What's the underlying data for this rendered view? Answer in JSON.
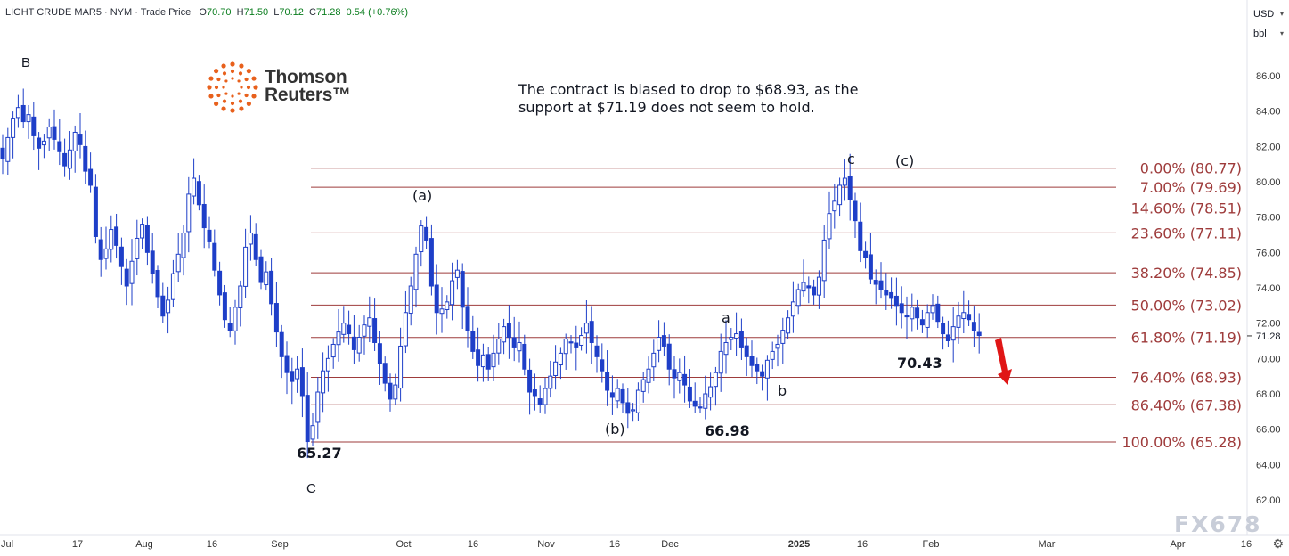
{
  "header": {
    "symbol": "LIGHT CRUDE MAR5 · NYM · Trade Price",
    "o_label": "O",
    "o_value": "70.70",
    "h_label": "H",
    "h_value": "71.50",
    "l_label": "L",
    "l_value": "70.12",
    "c_label": "C",
    "c_value": "71.28",
    "change": "0.54 (+0.76%)"
  },
  "currency_select": "USD",
  "unit_select": "bbl",
  "logo": {
    "name_line1": "Thomson",
    "name_line2": "Reuters™"
  },
  "note": "The contract is biased to drop to $68.93, as the support at $71.19 does not seem to hold.",
  "watermark": "FX678",
  "wave_labels": {
    "B": "B",
    "C": "C",
    "a_paren": "(a)",
    "b_paren": "(b)",
    "c_paren": "(c)",
    "a": "a",
    "b": "b",
    "c": "c"
  },
  "price_labels": {
    "low_sep": "65.27",
    "low_dec": "66.98",
    "low_feb": "70.43"
  },
  "colors": {
    "candle": "#1e3fc8",
    "fib_line": "#9e3b3b",
    "fib_text": "#9e3b3b",
    "arrow": "#e01616",
    "axis_text": "#333333"
  },
  "chart_data": {
    "type": "candlestick",
    "y_axis": {
      "min": 61,
      "max": 88,
      "ticks": [
        "86.00",
        "84.00",
        "82.00",
        "80.00",
        "78.00",
        "76.00",
        "74.00",
        "72.00",
        "70.00",
        "68.00",
        "66.00",
        "64.00",
        "62.00"
      ],
      "current_label": "71.28"
    },
    "x_axis": {
      "ticks": [
        "Jul",
        "17",
        "Aug",
        "16",
        "Sep",
        "Oct",
        "16",
        "Nov",
        "16",
        "Dec",
        "2025",
        "16",
        "Feb",
        "Mar",
        "Apr",
        "16"
      ]
    },
    "fib_levels": [
      {
        "label": "0.00% (80.77)",
        "value": 80.77
      },
      {
        "label": "7.00% (79.69)",
        "value": 79.69
      },
      {
        "label": "14.60% (78.51)",
        "value": 78.51
      },
      {
        "label": "23.60% (77.11)",
        "value": 77.11
      },
      {
        "label": "38.20% (74.85)",
        "value": 74.85
      },
      {
        "label": "50.00% (73.02)",
        "value": 73.02
      },
      {
        "label": "61.80% (71.19)",
        "value": 71.19
      },
      {
        "label": "76.40% (68.93)",
        "value": 68.93
      },
      {
        "label": "86.40% (67.38)",
        "value": 67.38
      },
      {
        "label": "100.00% (65.28)",
        "value": 65.28
      }
    ],
    "closes": [
      81.3,
      82.5,
      83.6,
      84.2,
      83.4,
      83.8,
      82.6,
      81.9,
      82.3,
      83.1,
      82.4,
      81.7,
      80.9,
      81.8,
      82.8,
      82.1,
      80.6,
      79.8,
      76.9,
      75.6,
      76.2,
      77.3,
      76.4,
      75.2,
      74.1,
      75.5,
      76.8,
      77.6,
      76.0,
      74.8,
      73.5,
      72.4,
      73.3,
      74.8,
      75.9,
      77.1,
      79.3,
      80.2,
      78.7,
      77.4,
      76.6,
      75.0,
      73.6,
      72.2,
      71.6,
      72.9,
      74.1,
      76.3,
      77.1,
      75.6,
      74.3,
      74.9,
      73.1,
      71.5,
      70.1,
      69.2,
      68.7,
      69.4,
      67.9,
      65.3,
      66.2,
      68.1,
      69.3,
      70.0,
      70.8,
      71.5,
      72.0,
      71.4,
      70.5,
      71.2,
      71.9,
      72.3,
      70.9,
      69.7,
      68.6,
      67.7,
      68.5,
      70.7,
      72.6,
      74.1,
      75.9,
      77.5,
      76.7,
      74.1,
      72.6,
      72.8,
      73.2,
      74.4,
      75.0,
      72.9,
      71.6,
      70.4,
      69.6,
      70.2,
      69.4,
      70.3,
      71.1,
      71.8,
      71.2,
      70.6,
      70.9,
      69.4,
      68.1,
      67.9,
      67.4,
      68.3,
      69.0,
      69.8,
      70.3,
      71.1,
      70.9,
      70.6,
      71.3,
      72.0,
      70.9,
      70.1,
      69.3,
      68.2,
      67.8,
      68.3,
      67.5,
      66.9,
      67.1,
      68.2,
      68.8,
      69.4,
      70.3,
      71.2,
      70.7,
      69.4,
      68.9,
      69.2,
      68.5,
      67.6,
      67.3,
      67.2,
      68.0,
      68.4,
      69.2,
      70.4,
      70.9,
      71.2,
      71.4,
      70.6,
      70.1,
      69.6,
      69.3,
      69.0,
      69.9,
      70.4,
      70.8,
      71.6,
      72.3,
      73.2,
      73.9,
      74.3,
      74.0,
      73.6,
      74.6,
      76.7,
      78.2,
      78.9,
      79.8,
      80.2,
      79.0,
      77.8,
      76.1,
      75.7,
      74.5,
      74.2,
      73.9,
      73.6,
      73.4,
      73.0,
      72.6,
      72.4,
      72.9,
      72.3,
      71.9,
      72.6,
      73.0,
      72.1,
      71.4,
      71.0,
      71.8,
      72.4,
      72.6,
      72.2,
      71.6,
      71.3
    ]
  }
}
